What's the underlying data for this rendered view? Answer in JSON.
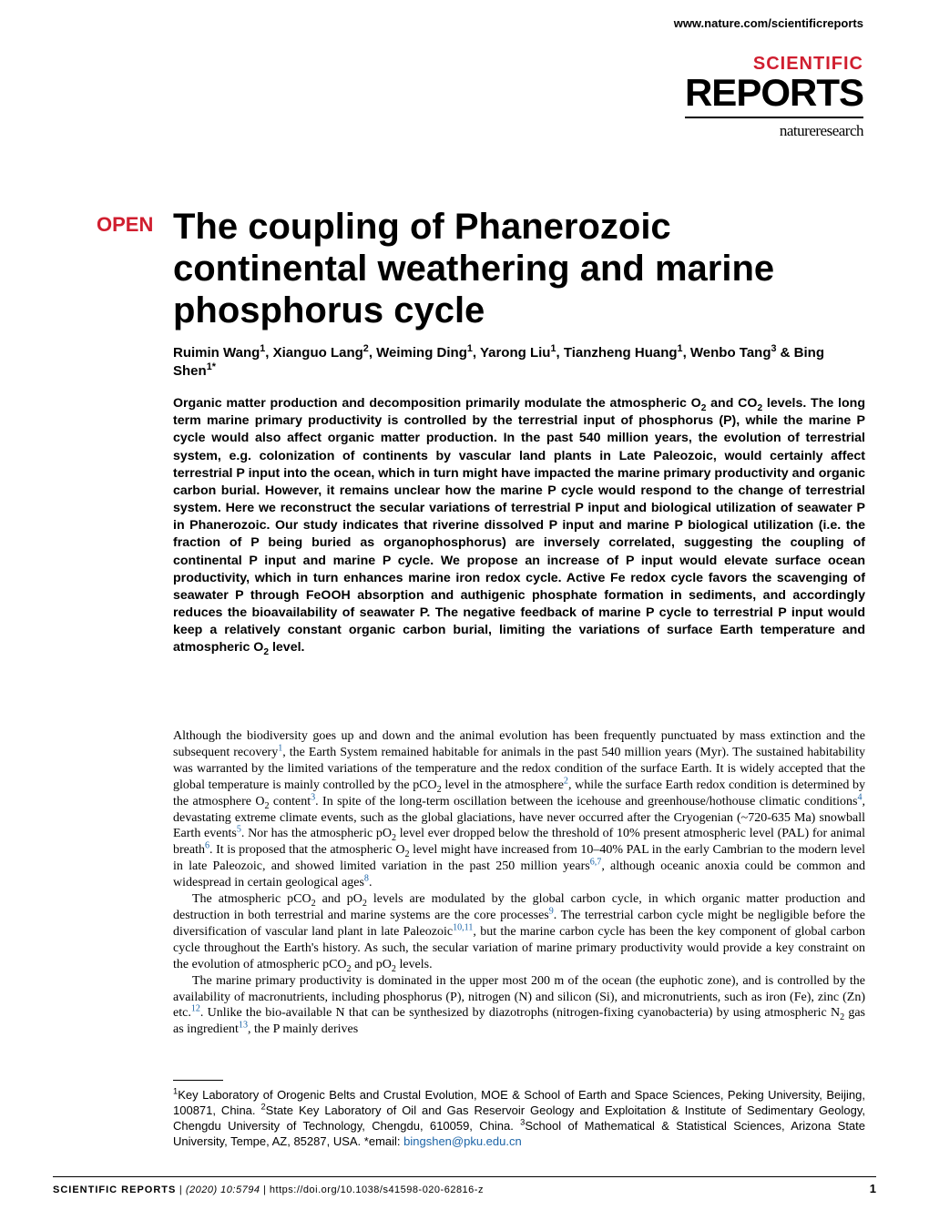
{
  "header": {
    "url": "www.nature.com/scientificreports"
  },
  "logo": {
    "line1": "SCIENTIFIC",
    "line2": "REPORTS",
    "sub": "natureresearch"
  },
  "badge": "OPEN",
  "title": "The coupling of Phanerozoic continental weathering and marine phosphorus cycle",
  "authors_html": "Ruimin Wang<sup>1</sup>, Xianguo Lang<sup>2</sup>, Weiming Ding<sup>1</sup>, Yarong Liu<sup>1</sup>, Tianzheng Huang<sup>1</sup>, Wenbo Tang<sup>3</sup> &amp; Bing Shen<sup>1*</sup>",
  "abstract_html": "Organic matter production and decomposition primarily modulate the atmospheric O<sub>2</sub> and CO<sub>2</sub> levels. The long term marine primary productivity is controlled by the terrestrial input of phosphorus (P), while the marine P cycle would also affect organic matter production. In the past 540 million years, the evolution of terrestrial system, e.g. colonization of continents by vascular land plants in Late Paleozoic, would certainly affect terrestrial P input into the ocean, which in turn might have impacted the marine primary productivity and organic carbon burial. However, it remains unclear how the marine P cycle would respond to the change of terrestrial system. Here we reconstruct the secular variations of terrestrial P input and biological utilization of seawater P in Phanerozoic. Our study indicates that riverine dissolved P input and marine P biological utilization (i.e. the fraction of P being buried as organophosphorus) are inversely correlated, suggesting the coupling of continental P input and marine P cycle. We propose an increase of P input would elevate surface ocean productivity, which in turn enhances marine iron redox cycle. Active Fe redox cycle favors the scavenging of seawater P through FeOOH absorption and authigenic phosphate formation in sediments, and accordingly reduces the bioavailability of seawater P. The negative feedback of marine P cycle to terrestrial P input would keep a relatively constant organic carbon burial, limiting the variations of surface Earth temperature and atmospheric O<sub>2</sub> level.",
  "body": {
    "p1_html": "Although the biodiversity goes up and down and the animal evolution has been frequently punctuated by mass extinction and the subsequent recovery<sup class=\"ref\">1</sup>, the Earth System remained habitable for animals in the past 540 million years (Myr). The sustained habitability was warranted by the limited variations of the temperature and the redox condition of the surface Earth. It is widely accepted that the global temperature is mainly controlled by the pCO<sub>2</sub> level in the atmosphere<sup class=\"ref\">2</sup>, while the surface Earth redox condition is determined by the atmosphere O<sub>2</sub> content<sup class=\"ref\">3</sup>. In spite of the long-term oscillation between the icehouse and greenhouse/hothouse climatic conditions<sup class=\"ref\">4</sup>, devastating extreme climate events, such as the global glaciations, have never occurred after the Cryogenian (~720-635 Ma) snowball Earth events<sup class=\"ref\">5</sup>. Nor has the atmospheric pO<sub>2</sub> level ever dropped below the threshold of 10% present atmospheric level (PAL) for animal breath<sup class=\"ref\">6</sup>. It is proposed that the atmospheric O<sub>2</sub> level might have increased from 10–40% PAL in the early Cambrian to the modern level in late Paleozoic, and showed limited variation in the past 250 million years<sup class=\"ref\">6,7</sup>, although oceanic anoxia could be common and widespread in certain geological ages<sup class=\"ref\">8</sup>.",
    "p2_html": "The atmospheric pCO<sub>2</sub> and pO<sub>2</sub> levels are modulated by the global carbon cycle, in which organic matter production and destruction in both terrestrial and marine systems are the core processes<sup class=\"ref\">9</sup>. The terrestrial carbon cycle might be negligible before the diversification of vascular land plant in late Paleozoic<sup class=\"ref\">10,11</sup>, but the marine carbon cycle has been the key component of global carbon cycle throughout the Earth's history. As such, the secular variation of marine primary productivity would provide a key constraint on the evolution of atmospheric pCO<sub>2</sub> and pO<sub>2</sub> levels.",
    "p3_html": "The marine primary productivity is dominated in the upper most 200 m of the ocean (the euphotic zone), and is controlled by the availability of macronutrients, including phosphorus (P), nitrogen (N) and silicon (Si), and micronutrients, such as iron (Fe), zinc (Zn) etc.<sup class=\"ref\">12</sup>. Unlike the bio-available N that can be synthesized by diazotrophs (nitrogen-fixing cyanobacteria) by using atmospheric N<sub>2</sub> gas as ingredient<sup class=\"ref\">13</sup>, the P mainly derives"
  },
  "affiliations_html": "<sup>1</sup>Key Laboratory of Orogenic Belts and Crustal Evolution, MOE &amp; School of Earth and Space Sciences, Peking University, Beijing, 100871, China. <sup>2</sup>State Key Laboratory of Oil and Gas Reservoir Geology and Exploitation &amp; Institute of Sedimentary Geology, Chengdu University of Technology, Chengdu, 610059, China. <sup>3</sup>School of Mathematical &amp; Statistical Sciences, Arizona State University, Tempe, AZ, 85287, USA. *email: <span class=\"email\">bingshen@pku.edu.cn</span>",
  "footer": {
    "journal": "SCIENTIFIC REPORTS",
    "citation": "(2020) 10:5794 ",
    "doi": "| https://doi.org/10.1038/s41598-020-62816-z",
    "page": "1"
  },
  "colors": {
    "accent_red": "#d01e2f",
    "link_blue": "#1b64a7",
    "text": "#000000",
    "background": "#ffffff"
  }
}
